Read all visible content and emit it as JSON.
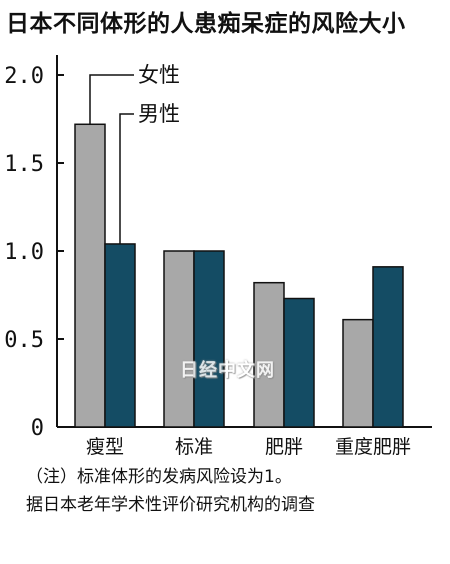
{
  "chart_data": {
    "type": "bar",
    "title": "日本不同体形的人患痴呆症的风险大小",
    "categories": [
      "瘦型",
      "标准",
      "肥胖",
      "重度肥胖"
    ],
    "series": [
      {
        "name": "女性",
        "values": [
          1.72,
          1.0,
          0.82,
          0.61
        ]
      },
      {
        "name": "男性",
        "values": [
          1.04,
          1.0,
          0.73,
          0.91
        ]
      }
    ],
    "yticks": [
      "0",
      "0.5",
      "1.0",
      "1.5",
      "2.0"
    ],
    "ylim": [
      0,
      2.1
    ],
    "colors": {
      "女性": "#a8a8a8",
      "男性": "#144c64"
    },
    "legend": "top-left",
    "grid": false
  },
  "notes": {
    "line1": "（注）标准体形的发病风险设为1。",
    "line2": "据日本老年学术性评价研究机构的调查"
  },
  "watermark": "日经中文网"
}
